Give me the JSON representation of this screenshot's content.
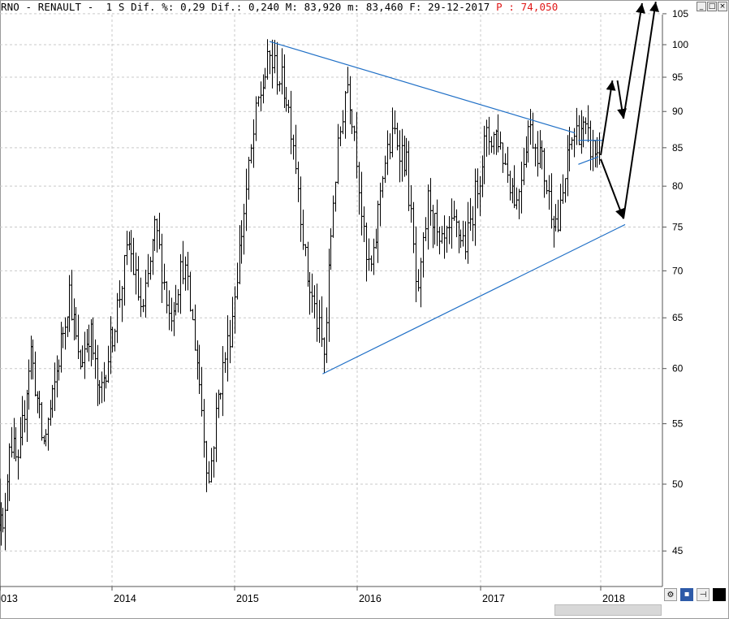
{
  "header": {
    "text_main": "RNO - RENAULT -  1 S Dif. %: 0,29 Dif.: 0,240 M: 83,920 m: 83,460 F: 29-12-2017 ",
    "text_red": "P : 74,050"
  },
  "window_buttons": [
    "_",
    "□",
    "×"
  ],
  "colors": {
    "bars": "#000000",
    "trendlines": "#1f6fc6",
    "grid": "#c9c9c9",
    "projection": "#000000",
    "header_red": "#e01818"
  },
  "chart_data": {
    "type": "ohlc",
    "title": "RNO - RENAULT",
    "frequency": "weekly",
    "scale": "log",
    "ylim": [
      43,
      105
    ],
    "y_ticks": [
      45,
      50,
      55,
      60,
      65,
      70,
      75,
      80,
      85,
      90,
      95,
      100,
      105
    ],
    "x_ticks": [
      "2013",
      "2014",
      "2015",
      "2016",
      "2017",
      "2018"
    ],
    "grid": true,
    "trendlines": [
      {
        "from": [
          "2015-04-15",
          100.5
        ],
        "to": [
          "2017-10-15",
          87.0
        ]
      },
      {
        "from": [
          "2015-09-20",
          59.5
        ],
        "to": [
          "2018-03-15",
          75.3
        ]
      },
      {
        "from": [
          "2017-10-25",
          82.8
        ],
        "to": [
          "2017-12-25",
          83.8
        ]
      },
      {
        "from": [
          "2017-10-25",
          86.0
        ],
        "to": [
          "2018-01-10",
          86.0
        ]
      }
    ],
    "projection_arrows": [
      {
        "from": [
          "2018-01-01",
          84.0
        ],
        "to": [
          "2018-02-05",
          94.5
        ]
      },
      {
        "from": [
          "2018-02-20",
          94.5
        ],
        "to": [
          "2018-03-10",
          89.0
        ]
      },
      {
        "from": [
          "2018-03-10",
          89.0
        ],
        "to": [
          "2018-05-05",
          108.0
        ]
      },
      {
        "from": [
          "2018-01-01",
          83.5
        ],
        "to": [
          "2018-03-10",
          76.0
        ]
      },
      {
        "from": [
          "2018-03-10",
          76.0
        ],
        "to": [
          "2018-06-15",
          107.0
        ]
      }
    ],
    "series_anchors": [
      [
        "2012-12-20",
        49
      ],
      [
        "2013-01-10",
        46
      ],
      [
        "2013-02-01",
        54
      ],
      [
        "2013-03-01",
        51
      ],
      [
        "2013-04-10",
        62
      ],
      [
        "2013-05-20",
        53
      ],
      [
        "2013-06-20",
        57
      ],
      [
        "2013-08-15",
        68
      ],
      [
        "2013-09-15",
        60
      ],
      [
        "2013-10-20",
        64
      ],
      [
        "2013-11-20",
        57
      ],
      [
        "2014-01-05",
        64
      ],
      [
        "2014-02-20",
        73
      ],
      [
        "2014-04-01",
        65
      ],
      [
        "2014-05-10",
        75
      ],
      [
        "2014-06-20",
        65
      ],
      [
        "2014-08-01",
        71
      ],
      [
        "2014-09-10",
        61
      ],
      [
        "2014-10-15",
        50
      ],
      [
        "2014-11-15",
        58
      ],
      [
        "2014-12-20",
        64
      ],
      [
        "2015-01-20",
        74
      ],
      [
        "2015-03-10",
        91
      ],
      [
        "2015-04-15",
        98
      ],
      [
        "2015-06-01",
        93
      ],
      [
        "2015-06-25",
        86
      ],
      [
        "2015-08-01",
        70
      ],
      [
        "2015-09-25",
        61
      ],
      [
        "2015-10-20",
        78
      ],
      [
        "2015-11-30",
        95
      ],
      [
        "2015-12-25",
        87
      ],
      [
        "2016-01-25",
        71
      ],
      [
        "2016-02-15",
        70
      ],
      [
        "2016-03-15",
        82
      ],
      [
        "2016-04-20",
        87
      ],
      [
        "2016-05-25",
        83
      ],
      [
        "2016-06-28",
        66
      ],
      [
        "2016-07-30",
        79
      ],
      [
        "2016-09-01",
        72
      ],
      [
        "2016-10-15",
        75
      ],
      [
        "2016-11-20",
        73
      ],
      [
        "2017-01-15",
        86
      ],
      [
        "2017-02-20",
        87
      ],
      [
        "2017-03-15",
        83
      ],
      [
        "2017-04-20",
        78
      ],
      [
        "2017-05-25",
        88
      ],
      [
        "2017-07-01",
        84
      ],
      [
        "2017-07-30",
        78
      ],
      [
        "2017-08-25",
        75
      ],
      [
        "2017-10-01",
        86
      ],
      [
        "2017-11-01",
        88
      ],
      [
        "2017-12-01",
        85
      ],
      [
        "2017-12-29",
        84
      ]
    ]
  }
}
